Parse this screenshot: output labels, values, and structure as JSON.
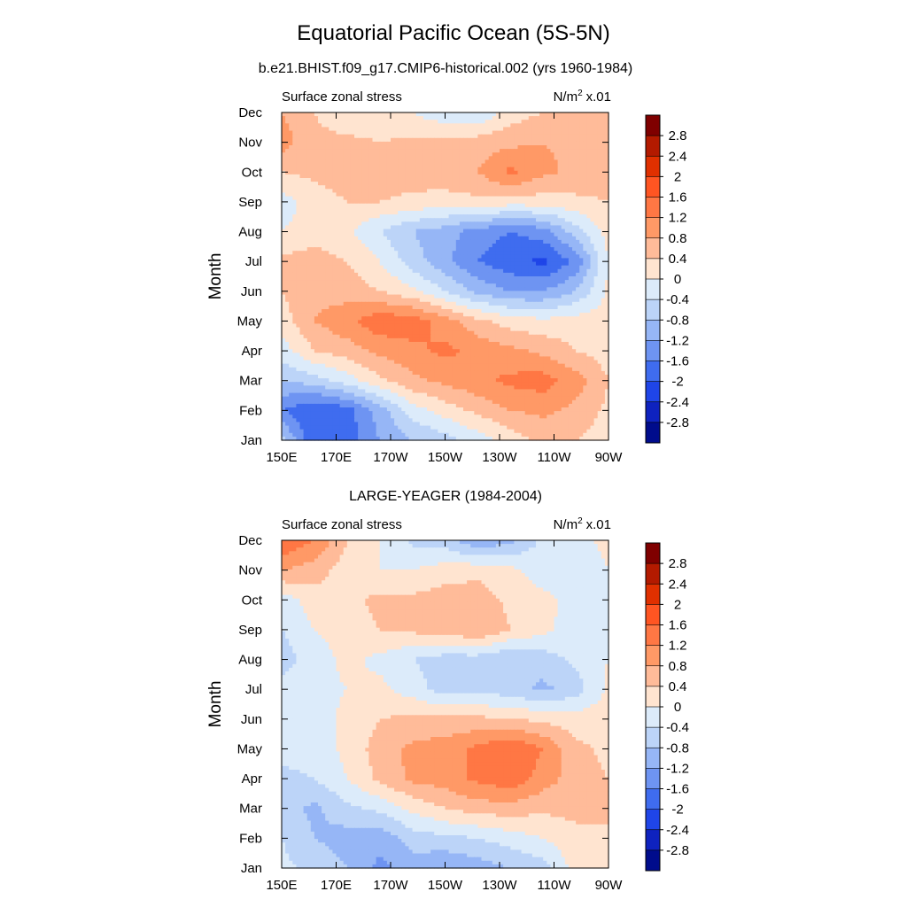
{
  "figure": {
    "title": "Equatorial Pacific Ocean (5S-5N)"
  },
  "colorbar": {
    "levels": [
      "2.8",
      "2.4",
      "2",
      "1.6",
      "1.2",
      "0.8",
      "0.4",
      "0",
      "-0.4",
      "-0.8",
      "-1.2",
      "-1.6",
      "-2",
      "-2.4",
      "-2.8"
    ],
    "colors": [
      "#7f0000",
      "#b31a00",
      "#e03000",
      "#ff5522",
      "#ff7744",
      "#ff9966",
      "#ffbb99",
      "#ffe4d0",
      "#dcebfa",
      "#bcd4f8",
      "#96b6f6",
      "#6e94f2",
      "#3f6cef",
      "#1f45e8",
      "#0e22bf",
      "#000c8c"
    ]
  },
  "chart_data": [
    {
      "type": "heatmap",
      "title": "b.e21.BHIST.f09_g17.CMIP6-historical.002 (yrs 1960-1984)",
      "left_label": "Surface zonal stress",
      "units_base": "N/m",
      "units_sup": "2",
      "units_scale": "x.01",
      "xlabel": "",
      "ylabel": "Month",
      "x_ticks": [
        "150E",
        "170E",
        "170W",
        "150W",
        "130W",
        "110W",
        "90W"
      ],
      "y_ticks": [
        "Jan",
        "Feb",
        "Mar",
        "Apr",
        "May",
        "Jun",
        "Jul",
        "Aug",
        "Sep",
        "Oct",
        "Nov",
        "Dec"
      ],
      "x_range": [
        150,
        270
      ],
      "y_range": [
        1,
        12
      ],
      "grid": [
        [
          -0.6,
          -2.0,
          -1.8,
          -1.2,
          -0.8,
          -0.6,
          -0.2,
          0.2,
          0.5,
          0.4,
          0.2
        ],
        [
          -1.6,
          -2.0,
          -1.8,
          -1.0,
          -0.2,
          0.2,
          0.5,
          0.8,
          0.9,
          0.7,
          0.3
        ],
        [
          -0.8,
          -0.6,
          -0.2,
          0.3,
          0.7,
          0.9,
          1.1,
          1.3,
          1.4,
          1.0,
          0.4
        ],
        [
          -0.2,
          0.4,
          0.6,
          0.9,
          1.1,
          1.3,
          1.1,
          0.9,
          0.7,
          0.4,
          0.2
        ],
        [
          0.2,
          0.8,
          1.1,
          1.5,
          1.4,
          1.0,
          0.5,
          0.2,
          0.1,
          0.2,
          0.2
        ],
        [
          0.4,
          0.7,
          0.6,
          0.4,
          0.1,
          -0.4,
          -0.9,
          -1.2,
          -1.2,
          -0.8,
          0.1
        ],
        [
          0.5,
          0.6,
          0.4,
          0.0,
          -0.6,
          -1.1,
          -1.6,
          -1.9,
          -2.1,
          -1.5,
          0.0
        ],
        [
          0.0,
          0.2,
          0.1,
          -0.4,
          -0.8,
          -1.0,
          -1.4,
          -1.6,
          -1.4,
          -0.6,
          0.2
        ],
        [
          -0.2,
          0.2,
          0.4,
          0.4,
          0.3,
          0.2,
          0.3,
          0.2,
          0.2,
          0.3,
          0.4
        ],
        [
          0.4,
          0.5,
          0.6,
          0.6,
          0.6,
          0.7,
          0.8,
          1.3,
          0.9,
          0.7,
          0.6
        ],
        [
          1.0,
          0.5,
          0.5,
          0.4,
          0.5,
          0.5,
          0.6,
          0.7,
          0.8,
          0.7,
          0.6
        ],
        [
          0.8,
          0.4,
          0.1,
          0.1,
          0.0,
          -0.3,
          -0.4,
          0.2,
          0.4,
          0.5,
          0.4
        ]
      ]
    },
    {
      "type": "heatmap",
      "title": "LARGE-YEAGER (1984-2004)",
      "left_label": "Surface zonal stress",
      "units_base": "N/m",
      "units_sup": "2",
      "units_scale": "x.01",
      "xlabel": "",
      "ylabel": "Month",
      "x_ticks": [
        "150E",
        "170E",
        "170W",
        "150W",
        "130W",
        "110W",
        "90W"
      ],
      "y_ticks": [
        "Jan",
        "Feb",
        "Mar",
        "Apr",
        "May",
        "Jun",
        "Jul",
        "Aug",
        "Sep",
        "Oct",
        "Nov",
        "Dec"
      ],
      "x_range": [
        150,
        270
      ],
      "y_range": [
        1,
        12
      ],
      "grid": [
        [
          -0.3,
          -0.5,
          -0.8,
          -1.3,
          -1.0,
          -1.2,
          -1.0,
          -0.8,
          -0.6,
          0.2,
          0.3
        ],
        [
          -0.4,
          -0.8,
          -1.0,
          -1.1,
          -0.6,
          -0.5,
          -0.4,
          -0.2,
          0.0,
          0.3,
          0.4
        ],
        [
          -0.6,
          -0.9,
          -0.5,
          -0.3,
          0.1,
          0.4,
          0.6,
          0.6,
          0.5,
          0.5,
          0.4
        ],
        [
          -0.5,
          -0.4,
          0.0,
          0.5,
          0.9,
          1.0,
          1.3,
          1.5,
          1.0,
          0.6,
          0.4
        ],
        [
          -0.3,
          -0.2,
          0.1,
          0.6,
          0.9,
          1.0,
          1.3,
          1.6,
          1.2,
          0.5,
          0.3
        ],
        [
          -0.2,
          -0.2,
          0.1,
          0.4,
          0.5,
          0.5,
          0.5,
          0.4,
          0.3,
          0.2,
          0.2
        ],
        [
          -0.2,
          -0.1,
          0.0,
          0.1,
          -0.2,
          -0.6,
          -0.6,
          -0.6,
          -0.9,
          -0.6,
          0.1
        ],
        [
          -0.6,
          -0.2,
          0.1,
          -0.1,
          -0.4,
          -0.6,
          -0.6,
          -0.8,
          -0.6,
          -0.3,
          0.0
        ],
        [
          -0.4,
          0.0,
          0.2,
          0.4,
          0.5,
          0.6,
          0.8,
          0.4,
          0.1,
          -0.2,
          -0.2
        ],
        [
          -0.2,
          0.2,
          0.3,
          0.5,
          0.5,
          0.6,
          0.6,
          0.3,
          0.1,
          -0.1,
          -0.1
        ],
        [
          0.8,
          0.6,
          0.2,
          0.0,
          0.0,
          0.2,
          0.3,
          0.1,
          -0.2,
          -0.3,
          0.0
        ],
        [
          1.6,
          1.2,
          0.4,
          0.0,
          -0.5,
          -0.6,
          -1.2,
          -0.9,
          -0.3,
          -0.1,
          0.1
        ]
      ]
    }
  ]
}
